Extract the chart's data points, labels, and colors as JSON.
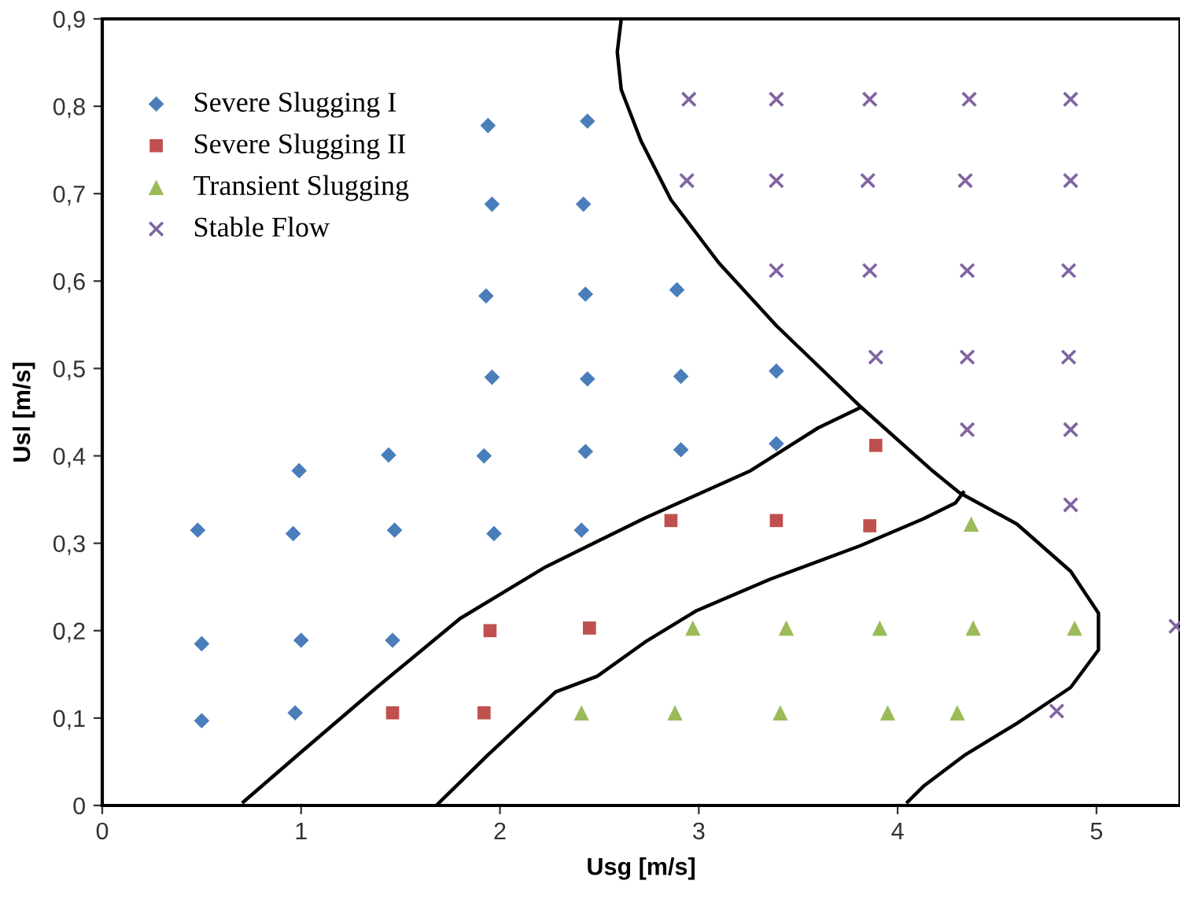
{
  "chart_data": {
    "type": "scatter",
    "xlabel": "Usg [m/s]",
    "ylabel": "Usl [m/s]",
    "xlim": [
      0,
      5.42
    ],
    "ylim": [
      0,
      0.9
    ],
    "xticks": [
      0,
      1,
      2,
      3,
      4,
      5
    ],
    "yticks": [
      0,
      {
        "value": 0.1,
        "label": "0,1"
      },
      {
        "value": 0.2,
        "label": "0,2"
      },
      {
        "value": 0.3,
        "label": "0,3"
      },
      {
        "value": 0.4,
        "label": "0,4"
      },
      {
        "value": 0.5,
        "label": "0,5"
      },
      {
        "value": 0.6,
        "label": "0,6"
      },
      {
        "value": 0.7,
        "label": "0,7"
      },
      {
        "value": 0.8,
        "label": "0,8"
      },
      {
        "value": 0.9,
        "label": "0,9"
      }
    ],
    "grid": false,
    "legend": "top left",
    "series": [
      {
        "name": "Severe Slugging I",
        "color": "#4a7ebb",
        "marker": "diamond",
        "x": [
          0.48,
          0.5,
          0.5,
          0.99,
          0.96,
          1.0,
          0.97,
          1.44,
          1.47,
          1.46,
          1.94,
          1.96,
          1.93,
          1.96,
          1.92,
          1.97,
          2.44,
          2.42,
          2.43,
          2.44,
          2.43,
          2.41,
          2.89,
          2.91,
          2.91,
          3.39,
          3.39
        ],
        "values": [
          0.315,
          0.185,
          0.097,
          0.383,
          0.311,
          0.189,
          0.106,
          0.401,
          0.315,
          0.189,
          0.778,
          0.688,
          0.583,
          0.49,
          0.4,
          0.311,
          0.783,
          0.688,
          0.585,
          0.488,
          0.405,
          0.315,
          0.59,
          0.491,
          0.407,
          0.497,
          0.414
        ]
      },
      {
        "name": "Severe Slugging II",
        "color": "#c0504d",
        "marker": "square",
        "x": [
          1.46,
          1.92,
          1.95,
          2.45,
          2.86,
          3.39,
          3.86,
          3.89
        ],
        "values": [
          0.106,
          0.106,
          0.2,
          0.203,
          0.326,
          0.326,
          0.32,
          0.412
        ]
      },
      {
        "name": "Transient Slugging",
        "color": "#9bbb59",
        "marker": "triangle",
        "x": [
          2.41,
          2.88,
          3.41,
          3.95,
          4.3,
          2.97,
          3.44,
          3.91,
          4.38,
          4.89,
          4.37
        ],
        "values": [
          0.106,
          0.106,
          0.106,
          0.106,
          0.106,
          0.203,
          0.203,
          0.203,
          0.203,
          0.203,
          0.322
        ]
      },
      {
        "name": "Stable Flow",
        "color": "#8064a2",
        "marker": "cross",
        "x": [
          2.95,
          3.39,
          3.86,
          4.36,
          4.87,
          2.94,
          3.39,
          3.85,
          4.34,
          4.87,
          3.39,
          3.86,
          4.35,
          4.86,
          3.89,
          4.35,
          4.86,
          4.35,
          4.87,
          4.87,
          4.8,
          5.4
        ],
        "values": [
          0.808,
          0.808,
          0.808,
          0.808,
          0.808,
          0.715,
          0.715,
          0.715,
          0.715,
          0.715,
          0.612,
          0.612,
          0.612,
          0.612,
          0.513,
          0.513,
          0.513,
          0.43,
          0.43,
          0.344,
          0.108,
          0.205
        ]
      },
      {
        "type": "line",
        "color": "#000000",
        "marker": "none",
        "x": [
          2.61,
          2.59,
          2.61,
          2.71,
          2.86,
          3.1,
          3.39,
          3.81,
          4.18,
          4.31,
          4.6,
          4.87,
          5.01,
          5.01,
          4.87,
          4.6,
          4.34,
          4.13,
          4.05
        ],
        "values": [
          0.9,
          0.862,
          0.819,
          0.76,
          0.693,
          0.621,
          0.549,
          0.457,
          0.382,
          0.358,
          0.322,
          0.268,
          0.22,
          0.178,
          0.135,
          0.094,
          0.058,
          0.022,
          0.004
        ]
      },
      {
        "type": "line",
        "color": "#000000",
        "marker": "none",
        "x": [
          0.71,
          1.01,
          1.38,
          1.8,
          2.23,
          2.73,
          3.26,
          3.6,
          3.81
        ],
        "values": [
          0.004,
          0.063,
          0.135,
          0.214,
          0.273,
          0.329,
          0.383,
          0.432,
          0.455
        ]
      },
      {
        "type": "line",
        "color": "#000000",
        "marker": "none",
        "x": [
          1.68,
          1.94,
          2.28,
          2.49,
          2.73,
          2.99,
          3.36,
          3.81,
          4.13,
          4.29,
          4.33
        ],
        "values": [
          0.0,
          0.058,
          0.13,
          0.148,
          0.187,
          0.223,
          0.259,
          0.297,
          0.328,
          0.346,
          0.358
        ]
      }
    ]
  }
}
